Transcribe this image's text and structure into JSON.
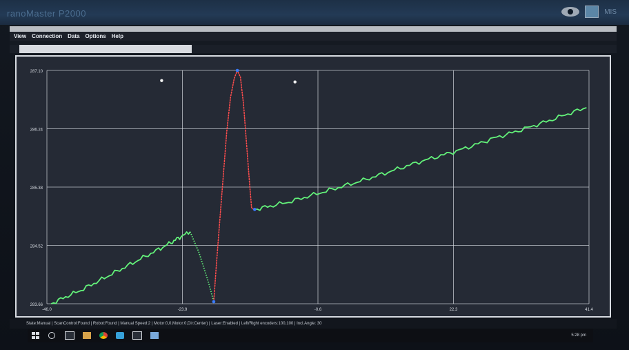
{
  "window": {
    "title": "ranoMaster P2000"
  },
  "header": {
    "logo_text": "MIS"
  },
  "menu": [
    "View",
    "Connection",
    "Data",
    "Options",
    "Help"
  ],
  "tab": {
    "label": "—"
  },
  "status": "State:Manual | ScanControl:Found | Robot:Found | Manual Speed:2 | Motor:0,0,Motor:0,Dir:Center) | Laser:Enabled | Left/Right encoders:100,100 | Incl.Angle: 30",
  "taskbar": {
    "clock": "5:28 pm"
  },
  "colors": {
    "trace": "#63f27a",
    "peak": "#ff4d4d",
    "marker": "#3a7bff",
    "grid": "#d6dae0"
  },
  "chart_data": {
    "type": "line",
    "title": "",
    "xlabel": "",
    "ylabel": "",
    "xlim": [
      -46.0,
      41.4
    ],
    "ylim": [
      283.66,
      287.1
    ],
    "x_ticks": [
      "-46.0",
      "-23.9",
      "-0.6",
      "22.3",
      "41.4"
    ],
    "y_ticks": [
      "283.66",
      "284.52",
      "285.38",
      "286.24",
      "287.10"
    ],
    "series": [
      {
        "name": "",
        "color": "#63f27a",
        "segments": [
          [
            [
              -45.3,
              283.66
            ],
            [
              -43.0,
              283.76
            ],
            [
              -40.5,
              283.86
            ],
            [
              -38.0,
              283.98
            ],
            [
              -35.5,
              284.1
            ],
            [
              -33.0,
              284.22
            ],
            [
              -30.5,
              284.34
            ],
            [
              -28.0,
              284.46
            ],
            [
              -26.0,
              284.56
            ],
            [
              -24.6,
              284.64
            ],
            [
              -22.9,
              284.72
            ]
          ],
          [
            [
              -22.9,
              284.72
            ],
            [
              -21.5,
              284.42
            ],
            [
              -20.0,
              283.99
            ],
            [
              -19.1,
              283.69
            ]
          ],
          [
            [
              -12.5,
              285.05
            ],
            [
              -10.0,
              285.1
            ],
            [
              -7.0,
              285.16
            ],
            [
              -4.0,
              285.24
            ],
            [
              -1.0,
              285.32
            ],
            [
              2.0,
              285.4
            ],
            [
              5.0,
              285.48
            ],
            [
              8.0,
              285.57
            ],
            [
              11.0,
              285.66
            ],
            [
              14.0,
              285.75
            ],
            [
              17.0,
              285.83
            ],
            [
              20.0,
              285.91
            ],
            [
              23.0,
              286.0
            ],
            [
              26.0,
              286.1
            ],
            [
              29.0,
              286.18
            ],
            [
              32.0,
              286.27
            ],
            [
              35.0,
              286.36
            ],
            [
              38.0,
              286.46
            ],
            [
              41.0,
              286.55
            ]
          ]
        ]
      },
      {
        "name": "",
        "color": "#ff4d4d",
        "points": [
          [
            -19.1,
            283.69
          ],
          [
            -18.7,
            284.2
          ],
          [
            -18.2,
            284.8
          ],
          [
            -17.6,
            285.5
          ],
          [
            -17.0,
            286.2
          ],
          [
            -16.4,
            286.7
          ],
          [
            -15.8,
            286.98
          ],
          [
            -15.3,
            287.1
          ],
          [
            -14.8,
            287.0
          ],
          [
            -14.3,
            286.6
          ],
          [
            -13.8,
            286.0
          ],
          [
            -13.3,
            285.4
          ],
          [
            -13.0,
            285.07
          ],
          [
            -12.6,
            285.05
          ]
        ]
      }
    ],
    "markers": [
      {
        "x": -15.3,
        "y": 287.1,
        "color": "#3a7bff"
      },
      {
        "x": -19.1,
        "y": 283.69,
        "color": "#3a7bff"
      },
      {
        "x": -12.5,
        "y": 285.05,
        "color": "#3a7bff"
      }
    ],
    "grid": true
  }
}
